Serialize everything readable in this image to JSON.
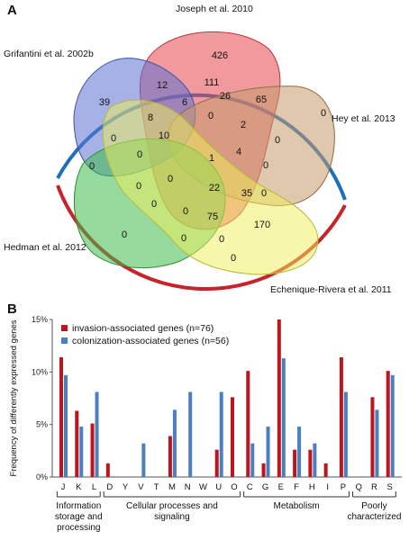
{
  "panels": {
    "a": "A",
    "b": "B"
  },
  "venn": {
    "sets": [
      {
        "name": "Joseph et al. 2010",
        "color": "#e8464f"
      },
      {
        "name": "Grifantini et al. 2002b",
        "color": "#5d73cf"
      },
      {
        "name": "Hey et al. 2013",
        "color": "#c49a6c"
      },
      {
        "name": "Hedman et al. 2012",
        "color": "#3fbd4c"
      },
      {
        "name": "Echenique-Rivera et al. 2011",
        "color": "#f0f05a"
      }
    ],
    "counts": [
      "426",
      "39",
      "12",
      "111",
      "26",
      "65",
      "0",
      "8",
      "6",
      "0",
      "2",
      "0",
      "10",
      "0",
      "0",
      "1",
      "4",
      "0",
      "0",
      "0",
      "22",
      "35",
      "0",
      "0",
      "75",
      "170",
      "0",
      "0",
      "0",
      "0",
      "0",
      "0"
    ],
    "arc_colors": {
      "top": "#1f6fbf",
      "bottom": "#c8232c"
    }
  },
  "chart_data": {
    "type": "bar",
    "categories": [
      "J",
      "K",
      "L",
      "D",
      "Y",
      "V",
      "T",
      "M",
      "N",
      "W",
      "U",
      "O",
      "C",
      "G",
      "E",
      "F",
      "H",
      "I",
      "P",
      "Q",
      "R",
      "S"
    ],
    "series": [
      {
        "name": "invasion-associated genes (n=76)",
        "color": "#c0141c",
        "values": [
          11.4,
          6.3,
          5.1,
          1.3,
          0,
          0,
          0,
          3.9,
          0,
          0,
          2.6,
          7.6,
          10.1,
          1.3,
          15,
          2.6,
          2.6,
          1.3,
          11.4,
          0,
          7.6,
          10.1
        ]
      },
      {
        "name": "colonization-associated genes (n=56)",
        "color": "#4a7fc1",
        "values": [
          9.7,
          4.8,
          8.1,
          0,
          0,
          3.2,
          0,
          6.4,
          8.1,
          0,
          8.1,
          0,
          3.2,
          4.8,
          11.3,
          4.8,
          3.2,
          0,
          8.1,
          0,
          6.4,
          9.7
        ]
      }
    ],
    "ylabel": "Frequency of differently expressed genes",
    "yticks": [
      "0%",
      "5%",
      "10%",
      "15%"
    ],
    "ylim": [
      0,
      15
    ],
    "groups": [
      {
        "lines": [
          "Information",
          "storage and",
          "processing"
        ],
        "from": 0,
        "to": 2
      },
      {
        "lines": [
          "Cellular processes and",
          "signaling"
        ],
        "from": 3,
        "to": 11
      },
      {
        "lines": [
          "Metabolism"
        ],
        "from": 12,
        "to": 18
      },
      {
        "lines": [
          "Poorly",
          "characterized"
        ],
        "from": 19,
        "to": 21
      }
    ],
    "legend_position": "top-left",
    "grid": false
  }
}
